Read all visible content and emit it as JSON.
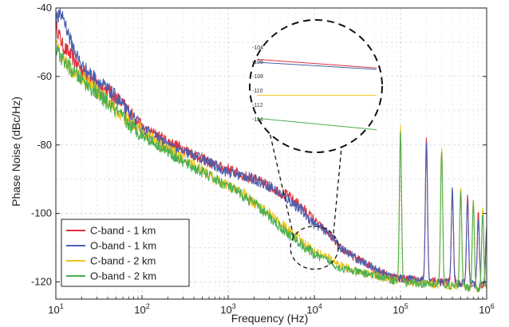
{
  "chart_data": {
    "type": "line",
    "title": "",
    "xlabel": "Frequency (Hz)",
    "ylabel": "Phase Noise (dBc/Hz)",
    "x_scale": "log",
    "xlim": [
      10,
      1000000
    ],
    "ylim": [
      -125,
      -40
    ],
    "y_ticks": [
      -120,
      -100,
      -80,
      -60,
      -40
    ],
    "x_ticks": [
      {
        "value": 10,
        "base": "10",
        "exp": "1"
      },
      {
        "value": 100,
        "base": "10",
        "exp": "2"
      },
      {
        "value": 1000,
        "base": "10",
        "exp": "3"
      },
      {
        "value": 10000,
        "base": "10",
        "exp": "4"
      },
      {
        "value": 100000,
        "base": "10",
        "exp": "5"
      },
      {
        "value": 1000000,
        "base": "10",
        "exp": "6"
      }
    ],
    "grid": true,
    "legend_position": "bottom-left",
    "series": [
      {
        "name": "C-band - 1 km",
        "color": "#e0303a",
        "x": [
          10,
          12,
          15,
          20,
          30,
          50,
          70,
          100,
          150,
          200,
          300,
          500,
          700,
          1000,
          1500,
          2000,
          3000,
          5000,
          7000,
          10000,
          15000,
          20000,
          30000,
          50000,
          70000,
          100000
        ],
        "y": [
          -45,
          -51,
          -54,
          -58,
          -62,
          -66,
          -70,
          -75,
          -77,
          -79,
          -81,
          -84,
          -86,
          -87,
          -89,
          -90,
          -92,
          -95,
          -98,
          -102,
          -106,
          -110,
          -113,
          -116,
          -118,
          -119
        ]
      },
      {
        "name": "O-band - 1 km",
        "color": "#4a5fae",
        "x": [
          10,
          12,
          15,
          20,
          30,
          50,
          70,
          100,
          150,
          200,
          300,
          500,
          700,
          1000,
          1500,
          2000,
          3000,
          5000,
          7000,
          10000,
          15000,
          20000,
          30000,
          50000,
          70000,
          100000
        ],
        "y": [
          -43,
          -42,
          -50,
          -57,
          -61,
          -66,
          -71,
          -75,
          -78,
          -80,
          -82,
          -84,
          -86,
          -88,
          -89,
          -90,
          -92,
          -96,
          -99,
          -103,
          -106,
          -110,
          -113,
          -116,
          -118,
          -119
        ]
      },
      {
        "name": "C-band - 2 km",
        "color": "#f2c21b",
        "x": [
          10,
          12,
          15,
          20,
          30,
          50,
          70,
          100,
          150,
          200,
          300,
          500,
          700,
          1000,
          1500,
          2000,
          3000,
          5000,
          7000,
          10000,
          15000,
          20000,
          30000,
          50000,
          70000,
          100000
        ],
        "y": [
          -51,
          -55,
          -58,
          -60,
          -64,
          -70,
          -73,
          -76,
          -79,
          -81,
          -84,
          -87,
          -90,
          -92,
          -94,
          -97,
          -100,
          -105,
          -108,
          -111,
          -113,
          -115,
          -117,
          -118,
          -119,
          -120
        ]
      },
      {
        "name": "O-band - 2 km",
        "color": "#4caf50",
        "x": [
          10,
          12,
          15,
          20,
          30,
          50,
          70,
          100,
          150,
          200,
          300,
          500,
          700,
          1000,
          1500,
          2000,
          3000,
          5000,
          7000,
          10000,
          15000,
          20000,
          30000,
          50000,
          70000,
          100000
        ],
        "y": [
          -52,
          -55,
          -58,
          -61,
          -65,
          -70,
          -74,
          -77,
          -80,
          -82,
          -85,
          -88,
          -90,
          -92,
          -95,
          -97,
          -101,
          -106,
          -109,
          -112,
          -114,
          -116,
          -117,
          -118,
          -119,
          -120
        ]
      }
    ],
    "peaks": [
      {
        "series": "C-band - 1 km",
        "x": [
          200000,
          400000,
          600000,
          800000,
          1000000
        ],
        "y": [
          -77,
          -92,
          -95,
          -100,
          -104
        ]
      },
      {
        "series": "O-band - 1 km",
        "x": [
          200000,
          400000,
          600000,
          800000,
          1000000
        ],
        "y": [
          -79,
          -93,
          -96,
          -101,
          -105
        ]
      },
      {
        "series": "C-band - 2 km",
        "x": [
          100000,
          300000,
          500000,
          700000,
          900000
        ],
        "y": [
          -75,
          -80,
          -92,
          -96,
          -99
        ]
      },
      {
        "series": "O-band - 2 km",
        "x": [
          100000,
          300000,
          500000,
          700000,
          900000
        ],
        "y": [
          -76,
          -82,
          -94,
          -97,
          -100
        ]
      }
    ],
    "inset": {
      "zoom_x": 10000,
      "zoom_y": -110,
      "ticks": [
        "-104",
        "-106",
        "-108",
        "-110",
        "-112",
        "-114"
      ],
      "levels": [
        {
          "series": "C-band - 1 km",
          "y_start": -105.6,
          "y_end": -106.8
        },
        {
          "series": "O-band - 1 km",
          "y_start": -106.0,
          "y_end": -107.0
        },
        {
          "series": "C-band - 2 km",
          "y_start": -110.6,
          "y_end": -110.6
        },
        {
          "series": "O-band - 2 km",
          "y_start": -113.8,
          "y_end": -115.4
        }
      ]
    }
  }
}
